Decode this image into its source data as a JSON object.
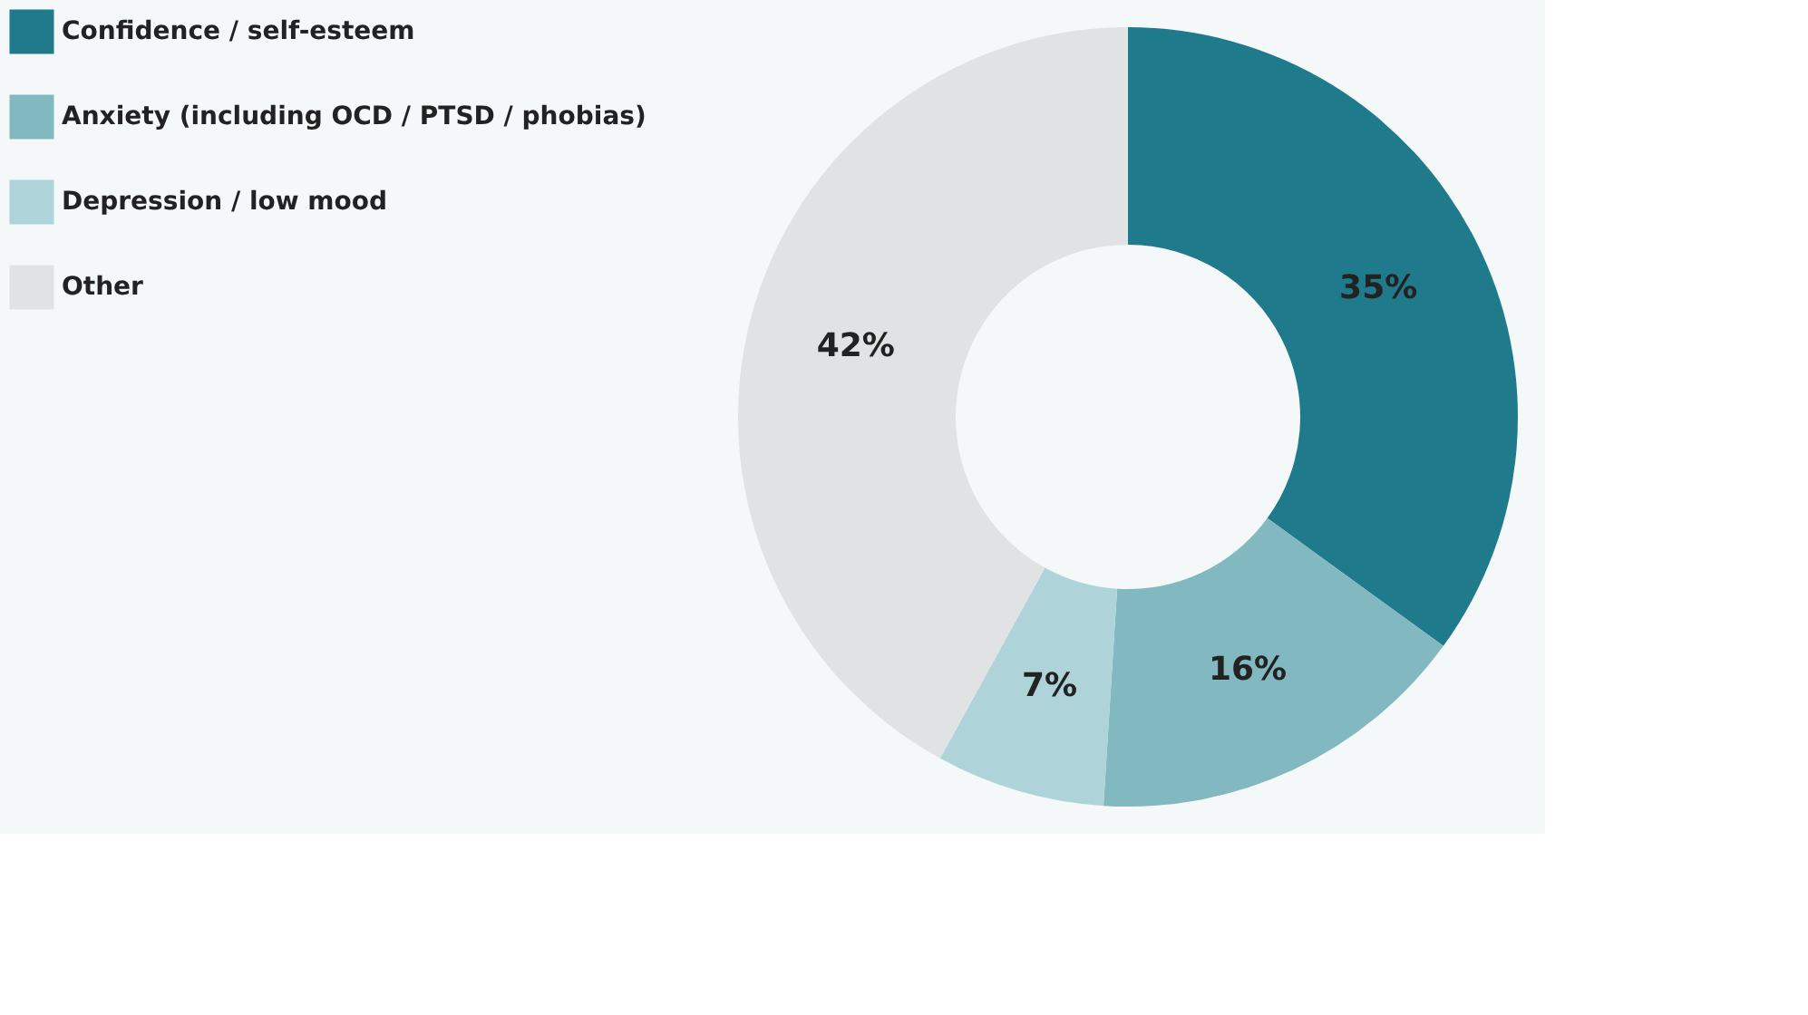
{
  "chart_data": {
    "type": "donut",
    "categories": [
      "Confidence / self-esteem",
      "Anxiety (including OCD / PTSD / phobias)",
      "Depression / low mood",
      "Other"
    ],
    "values": [
      35,
      16,
      7,
      42
    ],
    "colors": [
      "#1f7a8c",
      "#82b9c1",
      "#aed3d8",
      "#e1e2e4"
    ],
    "value_labels": [
      "35%",
      "16%",
      "7%",
      "42%"
    ],
    "legend": "top left"
  }
}
